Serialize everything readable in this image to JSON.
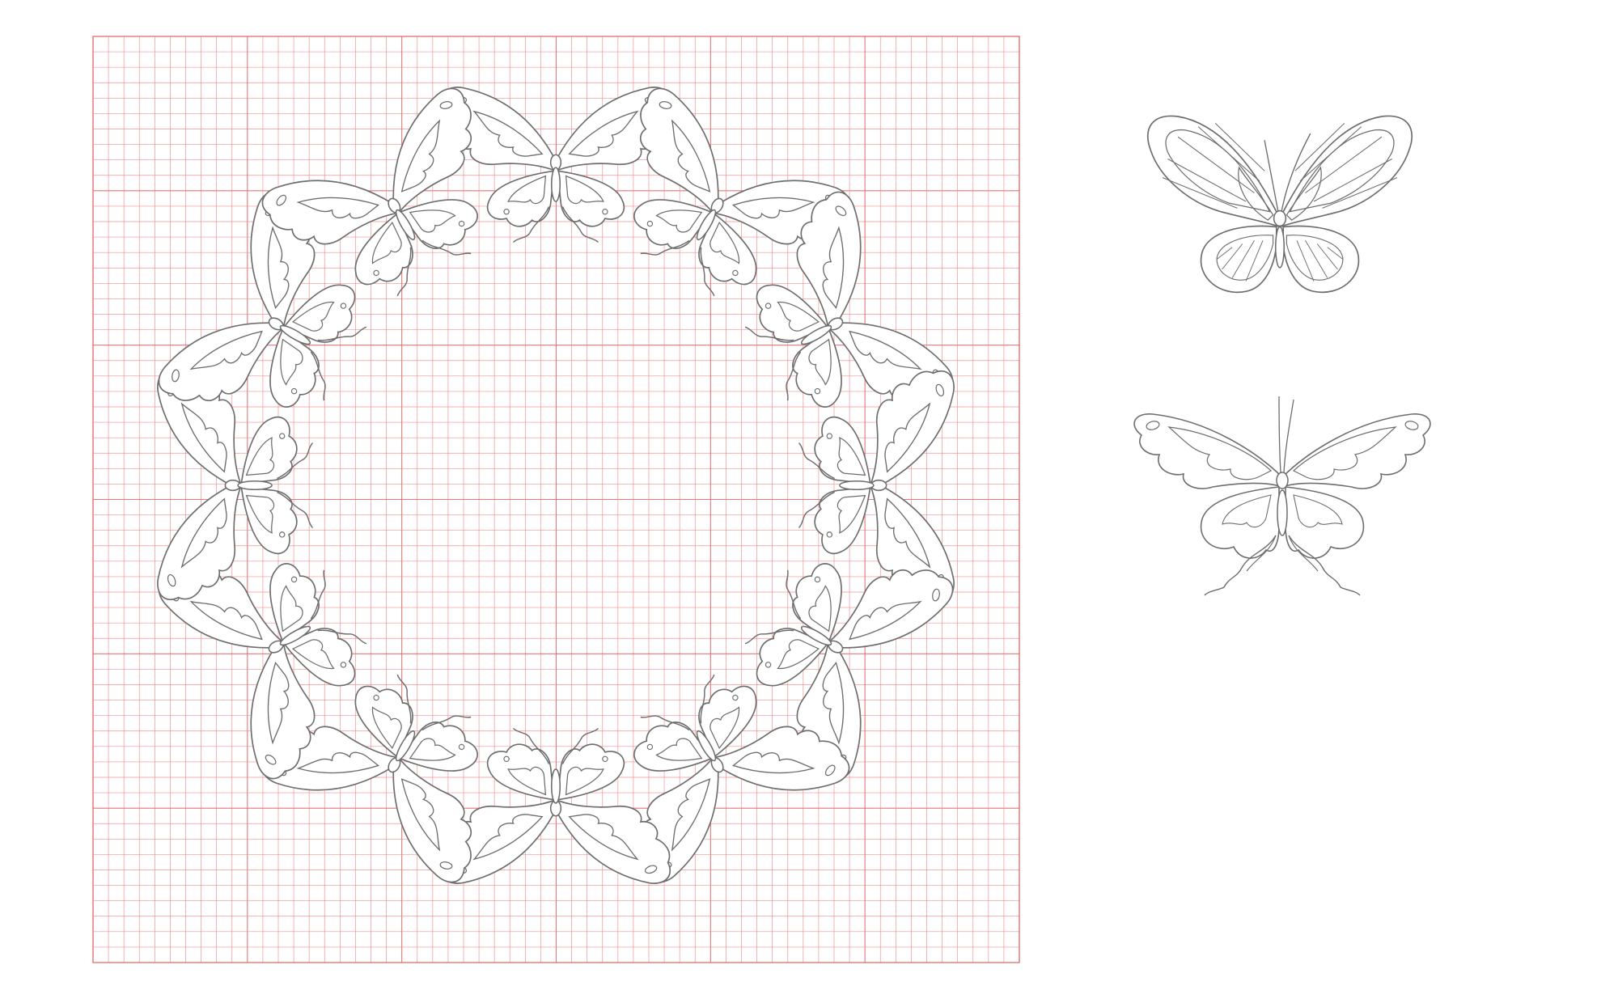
{
  "colors": {
    "background": "#ffffff",
    "grid_line": "#f08080",
    "grid_major": "#e06060",
    "outline": "#6e6e6e"
  },
  "pattern": {
    "motif": "butterfly",
    "ring_count": 12,
    "grid_cells_per_side": 60
  },
  "reference_motifs": [
    {
      "name": "butterfly-variant-1"
    },
    {
      "name": "butterfly-variant-2"
    }
  ]
}
